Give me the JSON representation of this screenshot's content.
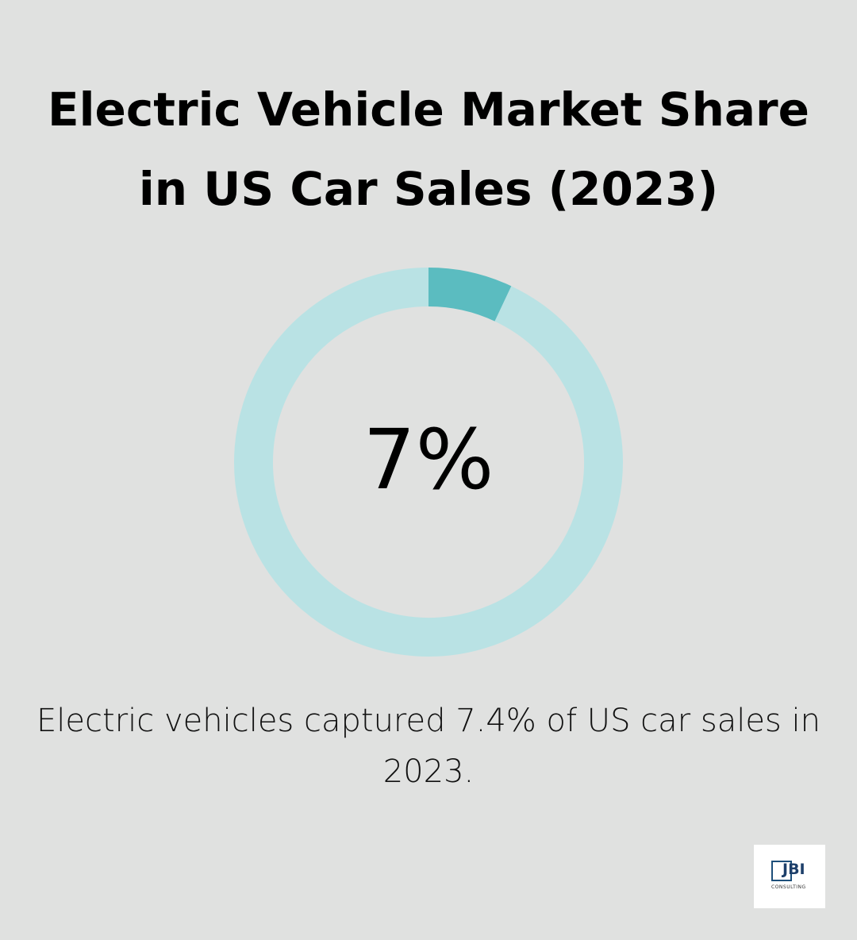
{
  "chart_data": {
    "type": "donut",
    "title": "Electric Vehicle Market Share in US Car Sales (2023)",
    "values": [
      7,
      93
    ],
    "value_labels": [
      "7%",
      null
    ],
    "colors": [
      "#5bbcc0",
      "#b9e2e4"
    ],
    "caption": "Electric vehicles captured 7.4% of US car sales in 2023."
  },
  "logo": {
    "text": "JBI",
    "subtext": "CONSULTING"
  }
}
